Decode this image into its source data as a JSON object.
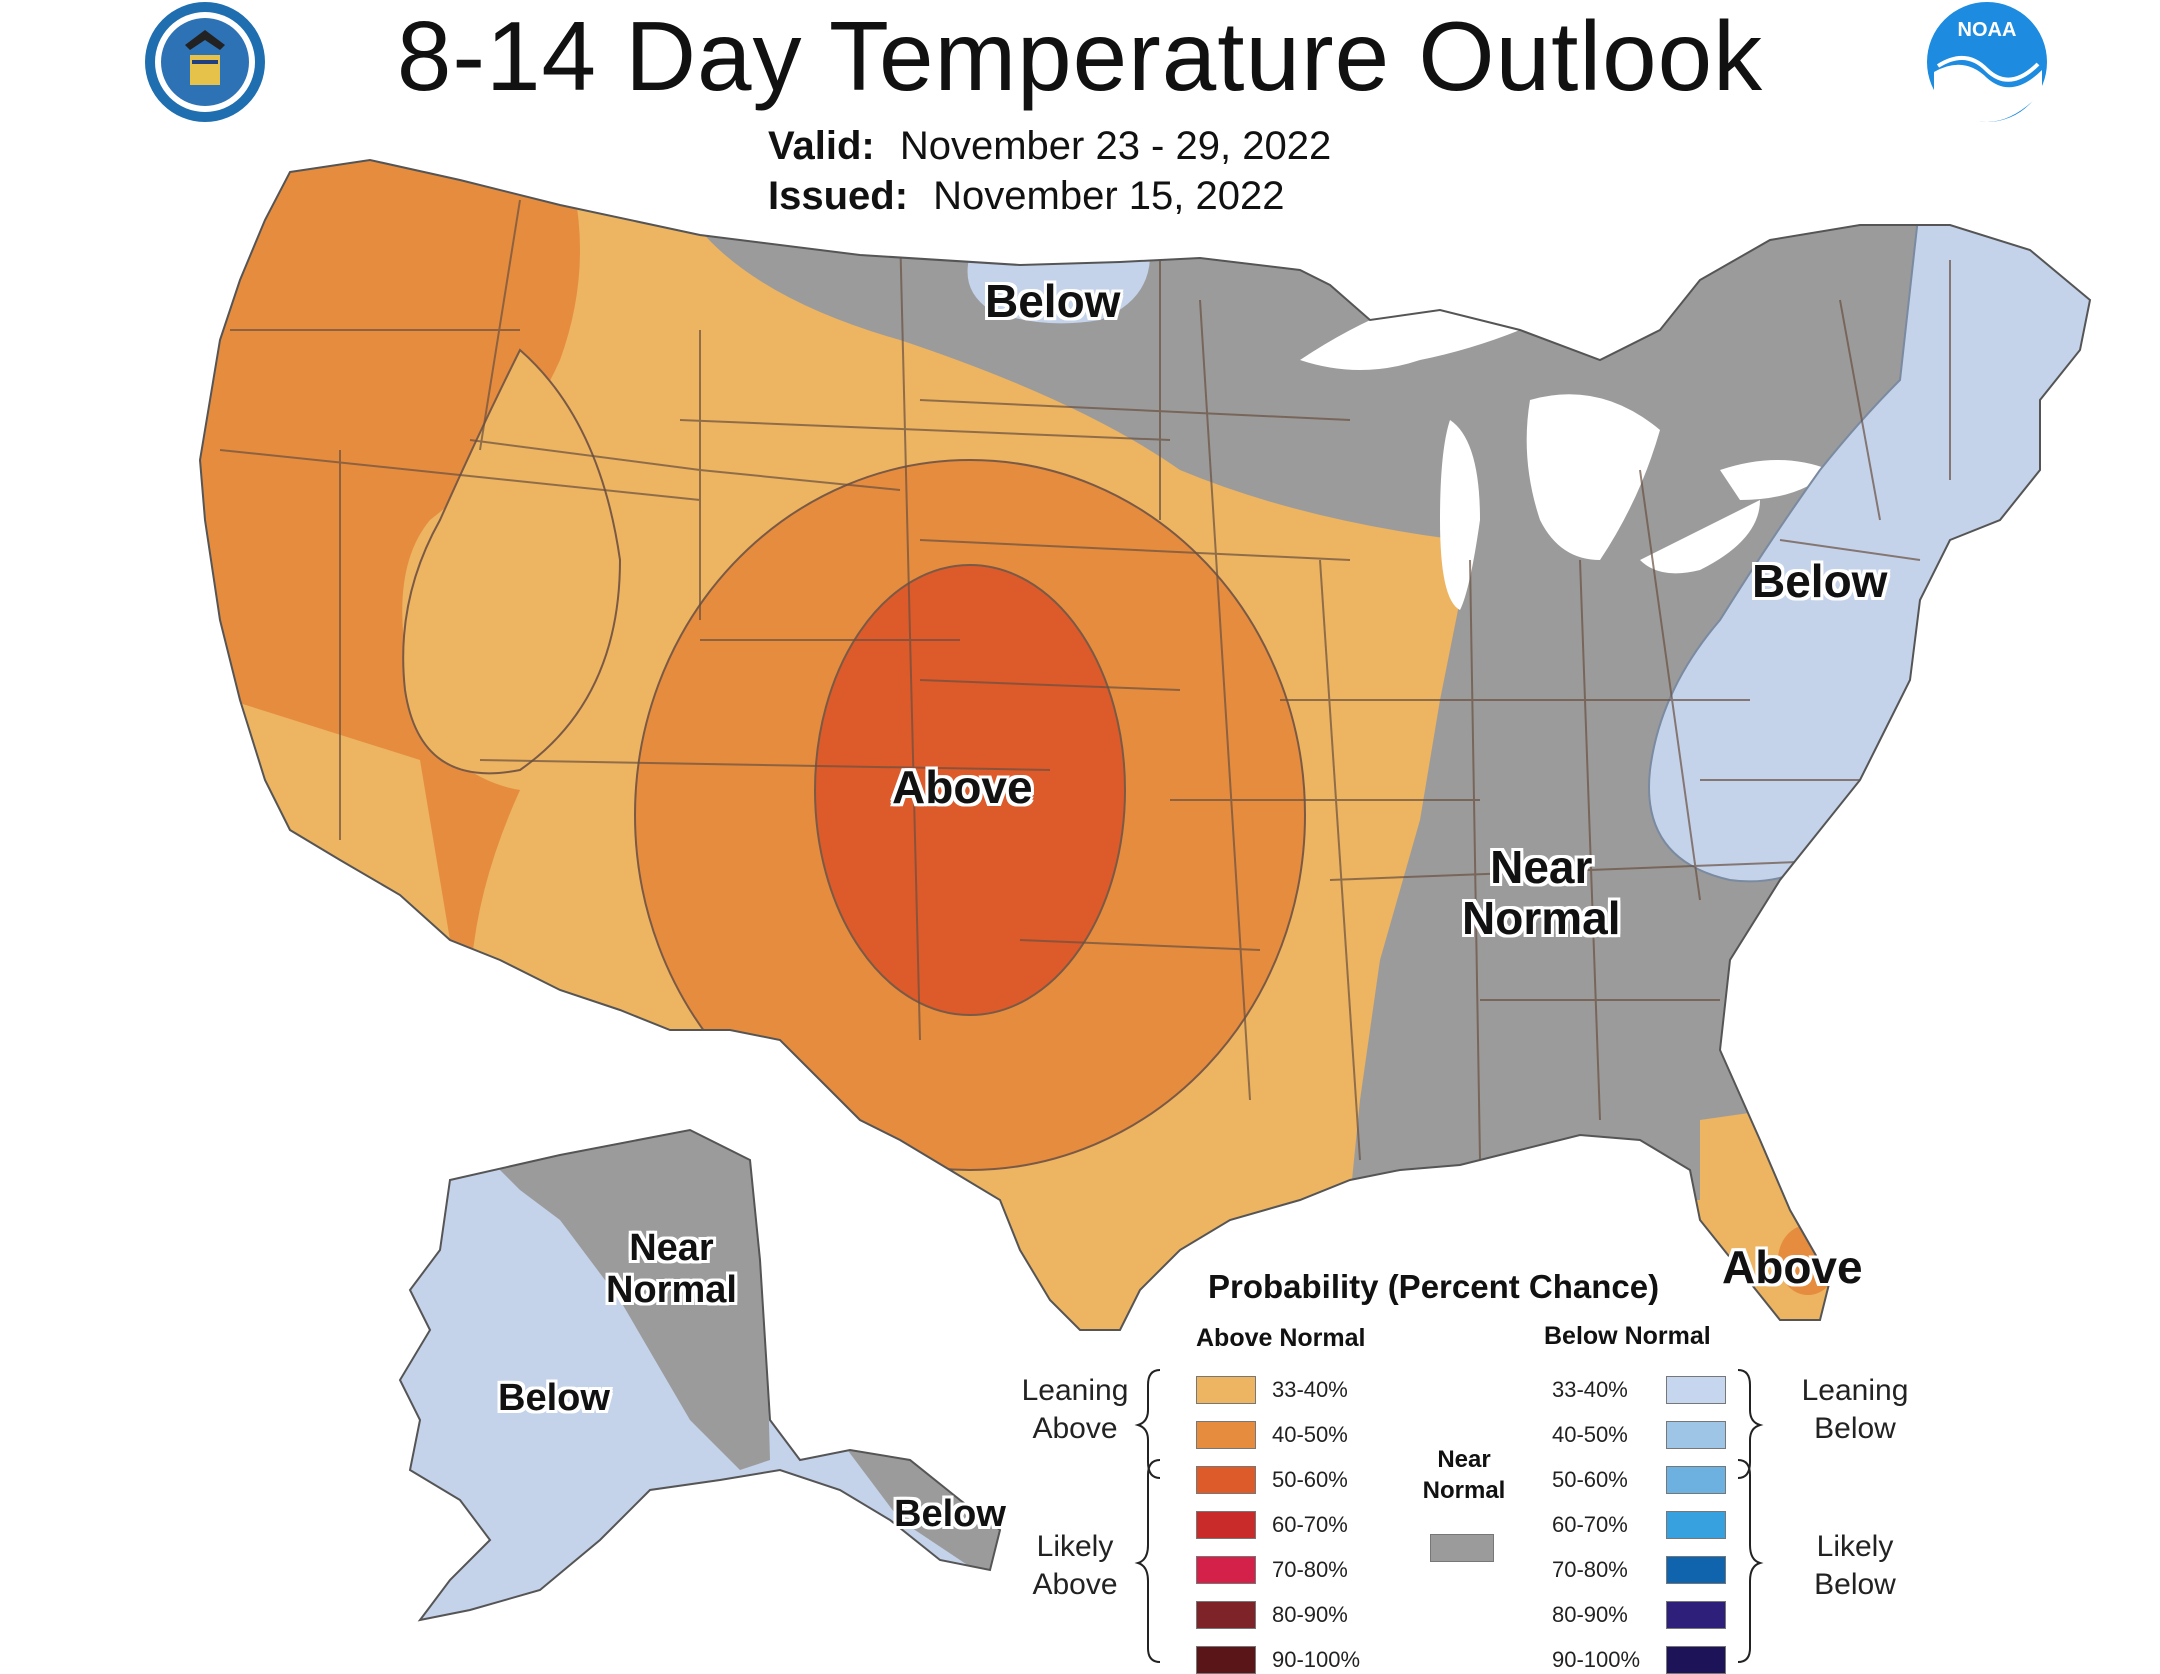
{
  "header": {
    "title": "8-14 Day Temperature Outlook",
    "valid_label": "Valid:",
    "valid_value": "November 23 - 29, 2022",
    "issued_label": "Issued:",
    "issued_value": "November 15, 2022"
  },
  "logos": {
    "doc_seal": "doc-seal-icon",
    "noaa": "NOAA"
  },
  "regions": {
    "below_north": "Below",
    "below_northeast": "Below",
    "above_central": "Above",
    "near_normal_southeast_1": "Near",
    "near_normal_southeast_2": "Normal",
    "above_florida": "Above",
    "alaska_near_normal_1": "Near",
    "alaska_near_normal_2": "Normal",
    "alaska_below": "Below",
    "alaska_below_southeast": "Below"
  },
  "colors": {
    "above_33_40": "#edb461",
    "above_40_50": "#e58c3f",
    "above_50_60": "#dd5a2b",
    "near_normal": "#9b9b9b",
    "below_33_40": "#c4d2ea",
    "state_line": "#6a5040"
  },
  "legend": {
    "title": "Probability (Percent Chance)",
    "above_header": "Above Normal",
    "below_header": "Below Normal",
    "leaning_above_1": "Leaning",
    "leaning_above_2": "Above",
    "likely_above_1": "Likely",
    "likely_above_2": "Above",
    "leaning_below_1": "Leaning",
    "leaning_below_2": "Below",
    "likely_below_1": "Likely",
    "likely_below_2": "Below",
    "near_normal_1": "Near",
    "near_normal_2": "Normal",
    "above_items": [
      {
        "label": "33-40%",
        "color": "#edb461"
      },
      {
        "label": "40-50%",
        "color": "#e58c3f"
      },
      {
        "label": "50-60%",
        "color": "#dd5a2b"
      },
      {
        "label": "60-70%",
        "color": "#c92a2a"
      },
      {
        "label": "70-80%",
        "color": "#d3214a"
      },
      {
        "label": "80-90%",
        "color": "#7e2428"
      },
      {
        "label": "90-100%",
        "color": "#5a1518"
      }
    ],
    "below_items": [
      {
        "label": "33-40%",
        "color": "#c7d6ef"
      },
      {
        "label": "40-50%",
        "color": "#9ec4e6"
      },
      {
        "label": "50-60%",
        "color": "#6db1e1"
      },
      {
        "label": "60-70%",
        "color": "#37a1e0"
      },
      {
        "label": "70-80%",
        "color": "#1064ae"
      },
      {
        "label": "80-90%",
        "color": "#2d1f7a"
      },
      {
        "label": "90-100%",
        "color": "#1c1358"
      }
    ],
    "near_normal_color": "#9b9b9b"
  }
}
